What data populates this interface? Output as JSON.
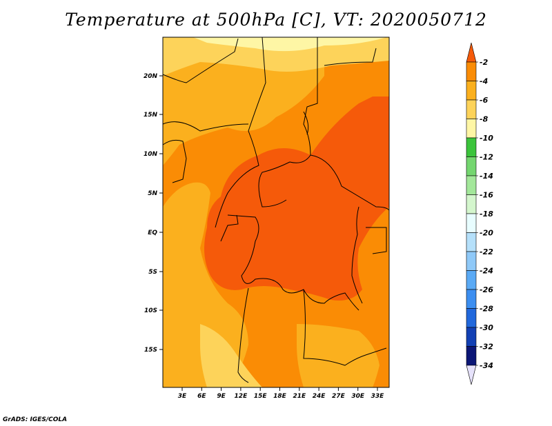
{
  "title": "Temperature at 500hPa [C], VT: 2020050712",
  "credit": "GrADS: IGES/COLA",
  "map": {
    "lat_labels": [
      "20N",
      "15N",
      "10N",
      "5N",
      "EQ",
      "5S",
      "10S",
      "15S"
    ],
    "lon_labels": [
      "3E",
      "6E",
      "9E",
      "12E",
      "15E",
      "18E",
      "21E",
      "24E",
      "27E",
      "30E",
      "33E"
    ]
  },
  "colorbar": {
    "labels": [
      "-2",
      "-4",
      "-6",
      "-8",
      "-10",
      "-12",
      "-14",
      "-16",
      "-18",
      "-20",
      "-22",
      "-24",
      "-26",
      "-28",
      "-30",
      "-32",
      "-34"
    ],
    "colors": [
      "#f55a0a",
      "#fa8c05",
      "#fbb01e",
      "#fdd35a",
      "#fef6a5",
      "#3bc43b",
      "#74d66f",
      "#a3e79a",
      "#d4f6cd",
      "#e8fdff",
      "#b5e0fa",
      "#8fc9f8",
      "#5aaaf5",
      "#3c8ef0",
      "#2168dc",
      "#1240b4",
      "#0b1676",
      "#e6e2fb"
    ]
  }
}
